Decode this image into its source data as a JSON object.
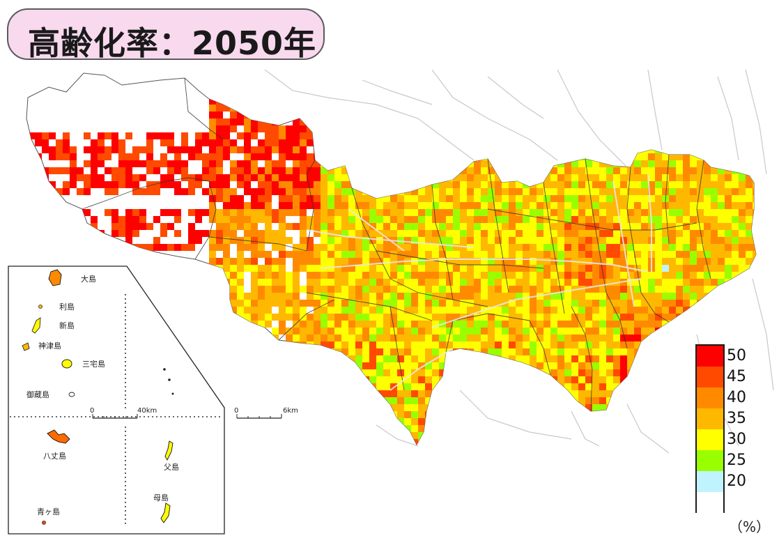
{
  "title": "高齢化率：2050年",
  "legend": {
    "unit": "（%）",
    "classes": [
      {
        "label": "50",
        "color": "#ff0000"
      },
      {
        "label": "45",
        "color": "#ff4a00"
      },
      {
        "label": "40",
        "color": "#ff8a00"
      },
      {
        "label": "35",
        "color": "#ffb800"
      },
      {
        "label": "30",
        "color": "#ffff00"
      },
      {
        "label": "25",
        "color": "#99ff00"
      },
      {
        "label": "20",
        "color": "#bff4ff"
      },
      {
        "label": "",
        "color": "#ffffff"
      }
    ]
  },
  "islands": {
    "oshima": "大島",
    "toshima": "利島",
    "niijima": "新島",
    "kozushima": "神津島",
    "miyakejima": "三宅島",
    "mikurajima": "御蔵島",
    "hachijojima": "八丈島",
    "aogashima": "青ヶ島",
    "chichijima": "父島",
    "hahajima": "母島"
  },
  "scales": {
    "inset_start": "0",
    "inset_end": "40km",
    "main_start": "0",
    "main_end": "6km"
  }
}
